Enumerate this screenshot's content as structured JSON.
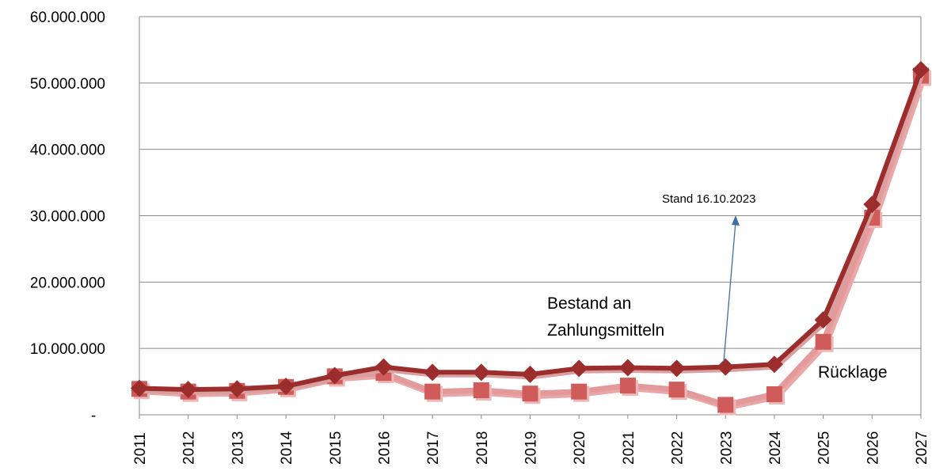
{
  "chart_data": {
    "type": "line",
    "categories": [
      "2011",
      "2012",
      "2013",
      "2014",
      "2015",
      "2016",
      "2017",
      "2018",
      "2019",
      "2020",
      "2021",
      "2022",
      "2023",
      "2024",
      "2025",
      "2026",
      "2027"
    ],
    "ylim": [
      0,
      60000000
    ],
    "y_ticks": [
      "-",
      "10.000.000",
      "20.000.000",
      "30.000.000",
      "40.000.000",
      "50.000.000",
      "60.000.000"
    ],
    "grid": true,
    "series": [
      {
        "name": "Bestand an Zahlungsmitteln",
        "marker": "diamond",
        "color": "#9b2d2d",
        "values": [
          4000000,
          3800000,
          3900000,
          4300000,
          5900000,
          7200000,
          6400000,
          6400000,
          6100000,
          7000000,
          7100000,
          7000000,
          7200000,
          7600000,
          14300000,
          31700000,
          52000000
        ]
      },
      {
        "name": "Rücklage",
        "marker": "square",
        "color": "#d05b5b",
        "values": [
          3900000,
          3500000,
          3600000,
          4200000,
          5800000,
          6300000,
          3500000,
          3700000,
          3200000,
          3500000,
          4400000,
          3800000,
          1500000,
          3100000,
          11000000,
          29700000,
          51100000
        ]
      }
    ],
    "annotations": {
      "line1_line1": "Bestand an",
      "line1_line2": "Zahlungsmitteln",
      "line2": "Rücklage",
      "stand": "Stand 16.10.2023"
    }
  }
}
